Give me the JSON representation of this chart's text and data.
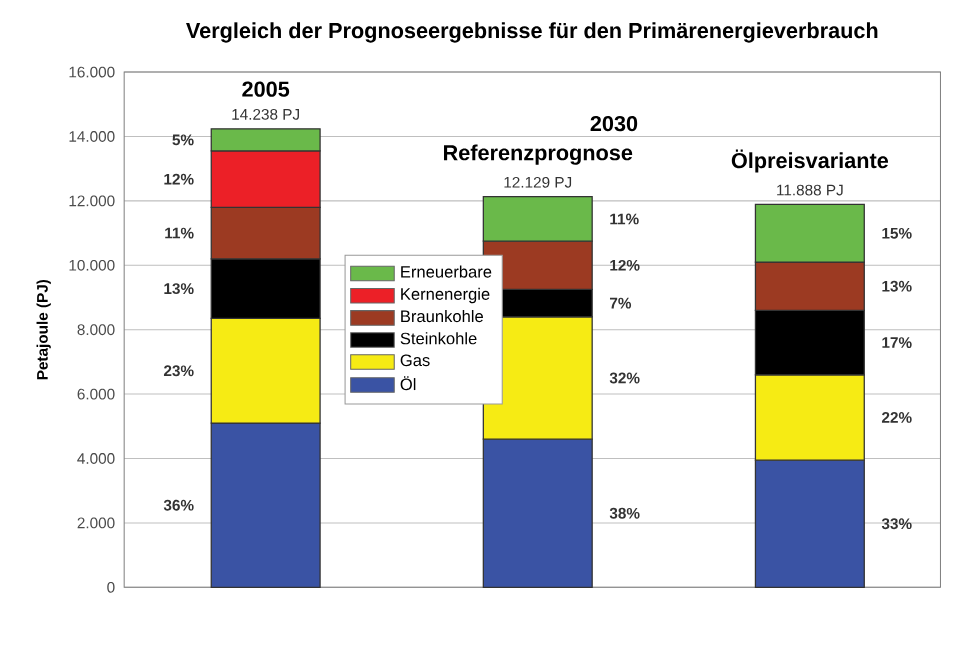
{
  "chart_data": {
    "type": "bar",
    "title": "Vergleich der Prognoseergebnisse für den Primärenergieverbrauch",
    "ylabel": "Petajoule (PJ)",
    "categories": [
      "2005",
      "Referenzprognose",
      "Ölpreisvariante"
    ],
    "stacked": true,
    "grid": "y",
    "legend": "left",
    "ylim": [
      0,
      16000
    ],
    "yticks": [
      {
        "value": 0,
        "label": "0"
      },
      {
        "value": 2000,
        "label": "2.000"
      },
      {
        "value": 4000,
        "label": "4.000"
      },
      {
        "value": 6000,
        "label": "6.000"
      },
      {
        "value": 8000,
        "label": "8.000"
      },
      {
        "value": 10000,
        "label": "10.000"
      },
      {
        "value": 12000,
        "label": "12.000"
      },
      {
        "value": 14000,
        "label": "14.000"
      },
      {
        "value": 16000,
        "label": "16.000"
      }
    ],
    "series": [
      {
        "name": "Öl",
        "color": "#3a53a4",
        "values": [
          5100,
          4600,
          3950
        ]
      },
      {
        "name": "Gas",
        "color": "#f6eb14",
        "values": [
          3250,
          3800,
          2650
        ]
      },
      {
        "name": "Steinkohle",
        "color": "#000000",
        "values": [
          1850,
          850,
          2000
        ]
      },
      {
        "name": "Braunkohle",
        "color": "#9c3a22",
        "values": [
          1600,
          1500,
          1500
        ]
      },
      {
        "name": "Kernenergie",
        "color": "#ec2027",
        "values": [
          1750,
          null,
          null
        ]
      },
      {
        "name": "Erneuerbare",
        "color": "#6ab94a",
        "values": [
          688,
          1379,
          1788
        ]
      }
    ],
    "totals": [
      "14.238 PJ",
      "12.129 PJ",
      "11.888 PJ"
    ],
    "annotations": [
      "2030",
      "36%",
      "23%",
      "13%",
      "11%",
      "12%",
      "5%",
      "38%",
      "32%",
      "7%",
      "12%",
      "11%",
      "33%",
      "22%",
      "17%",
      "13%",
      "15%"
    ]
  }
}
